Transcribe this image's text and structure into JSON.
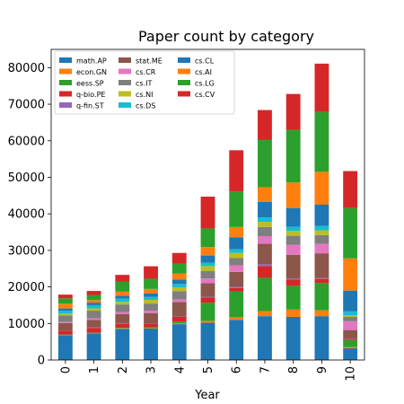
{
  "chart_data": {
    "type": "bar",
    "stacked": true,
    "title": "Paper count by category",
    "xlabel": "Year",
    "ylabel": "",
    "categories": [
      "0",
      "1",
      "2",
      "3",
      "4",
      "5",
      "6",
      "7",
      "8",
      "9",
      "10"
    ],
    "ylim": [
      0,
      85000
    ],
    "yticks": [
      0,
      10000,
      20000,
      30000,
      40000,
      50000,
      60000,
      70000,
      80000
    ],
    "ytick_labels": [
      "0",
      "10000",
      "20000",
      "30000",
      "40000",
      "50000",
      "60000",
      "70000",
      "80000"
    ],
    "legend_position": "upper-left",
    "legend_columns": 3,
    "series": [
      {
        "name": "math.AP",
        "color": "#1f77b4",
        "values": [
          6800,
          7300,
          8500,
          8600,
          9800,
          10200,
          11000,
          12000,
          11800,
          12000,
          3200
        ]
      },
      {
        "name": "econ.GN",
        "color": "#ff7f0e",
        "values": [
          100,
          100,
          150,
          150,
          200,
          500,
          700,
          1400,
          2000,
          1600,
          300
        ]
      },
      {
        "name": "eess.SP",
        "color": "#2ca02c",
        "values": [
          100,
          100,
          150,
          200,
          500,
          5000,
          7000,
          9000,
          6500,
          7500,
          2000
        ]
      },
      {
        "name": "q-bio.PE",
        "color": "#d62728",
        "values": [
          1000,
          1300,
          1200,
          1000,
          1300,
          1400,
          1000,
          3300,
          1700,
          1100,
          300
        ]
      },
      {
        "name": "q-fin.ST",
        "color": "#9467bd",
        "values": [
          100,
          100,
          100,
          100,
          100,
          200,
          300,
          500,
          300,
          200,
          100
        ]
      },
      {
        "name": "stat.ME",
        "color": "#8c564b",
        "values": [
          2000,
          2100,
          2500,
          2800,
          4000,
          3700,
          4100,
          5600,
          6500,
          6800,
          2300
        ]
      },
      {
        "name": "cs.CR",
        "color": "#e377c2",
        "values": [
          300,
          400,
          500,
          600,
          700,
          1300,
          1800,
          2100,
          2700,
          2600,
          2400
        ]
      },
      {
        "name": "cs.IT",
        "color": "#7f7f7f",
        "values": [
          1800,
          2100,
          2100,
          2000,
          2200,
          2100,
          2000,
          2500,
          2500,
          2400,
          1200
        ]
      },
      {
        "name": "cs.NI",
        "color": "#bcbd22",
        "values": [
          500,
          600,
          700,
          1000,
          1100,
          1300,
          1400,
          1400,
          1300,
          1300,
          400
        ]
      },
      {
        "name": "cs.DS",
        "color": "#17becf",
        "values": [
          800,
          900,
          900,
          800,
          900,
          900,
          1000,
          1200,
          1200,
          1200,
          1100
        ]
      },
      {
        "name": "cs.CL",
        "color": "#1f77b4",
        "values": [
          600,
          700,
          800,
          1000,
          1200,
          2000,
          3300,
          4300,
          5100,
          5800,
          5700
        ]
      },
      {
        "name": "cs.AI",
        "color": "#ff7f0e",
        "values": [
          1300,
          700,
          1100,
          1200,
          1700,
          2300,
          2800,
          4000,
          7000,
          9000,
          8800
        ]
      },
      {
        "name": "cs.LG",
        "color": "#2ca02c",
        "values": [
          1500,
          1400,
          2800,
          2800,
          2700,
          5100,
          9700,
          12900,
          14400,
          16400,
          13800
        ]
      },
      {
        "name": "cs.CV",
        "color": "#d62728",
        "values": [
          1000,
          1100,
          1800,
          3400,
          2900,
          8700,
          11300,
          8200,
          9800,
          13200,
          10100
        ]
      }
    ]
  }
}
